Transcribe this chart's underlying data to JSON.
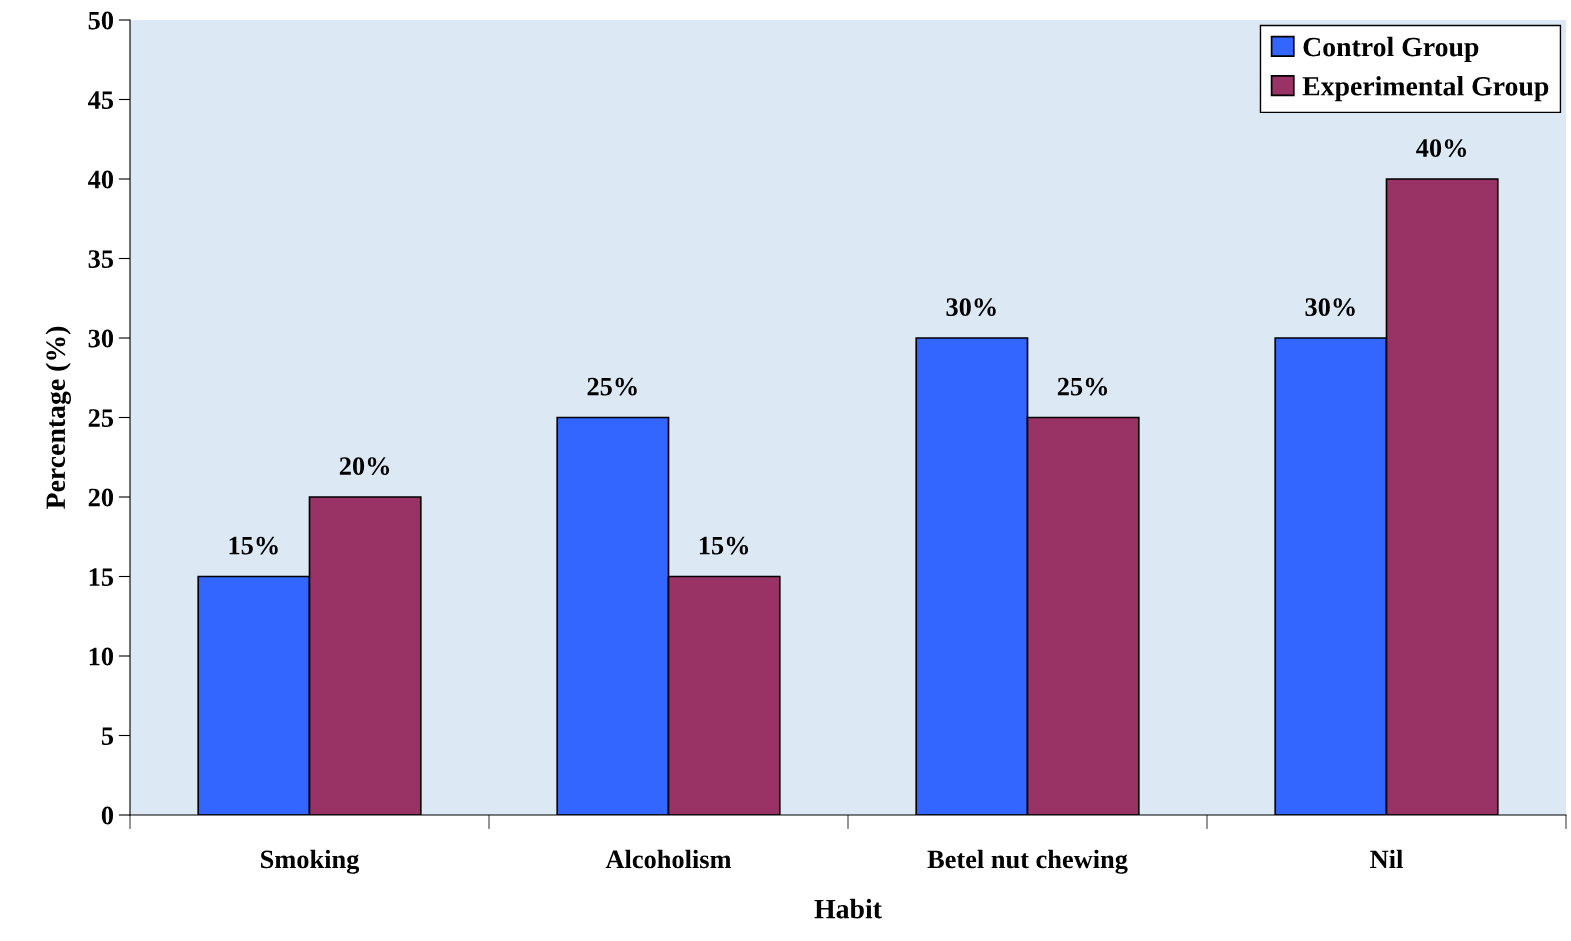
{
  "chart_data": {
    "type": "bar",
    "xlabel": "Habit",
    "ylabel": "Percentage (%)",
    "categories": [
      "Smoking",
      "Alcoholism",
      "Betel nut chewing",
      "Nil"
    ],
    "series": [
      {
        "name": "Control Group",
        "color": "#3366ff",
        "values": [
          15,
          25,
          30,
          30
        ],
        "value_labels": [
          "15%",
          "25%",
          "30%",
          "30%"
        ]
      },
      {
        "name": "Experimental Group",
        "color": "#993366",
        "values": [
          20,
          15,
          25,
          40
        ],
        "value_labels": [
          "20%",
          "15%",
          "25%",
          "40%"
        ]
      }
    ],
    "ylim": [
      0,
      50
    ],
    "yticks": [
      0,
      5,
      10,
      15,
      20,
      25,
      30,
      35,
      40,
      45,
      50
    ],
    "grid": false,
    "legend": "top right"
  }
}
